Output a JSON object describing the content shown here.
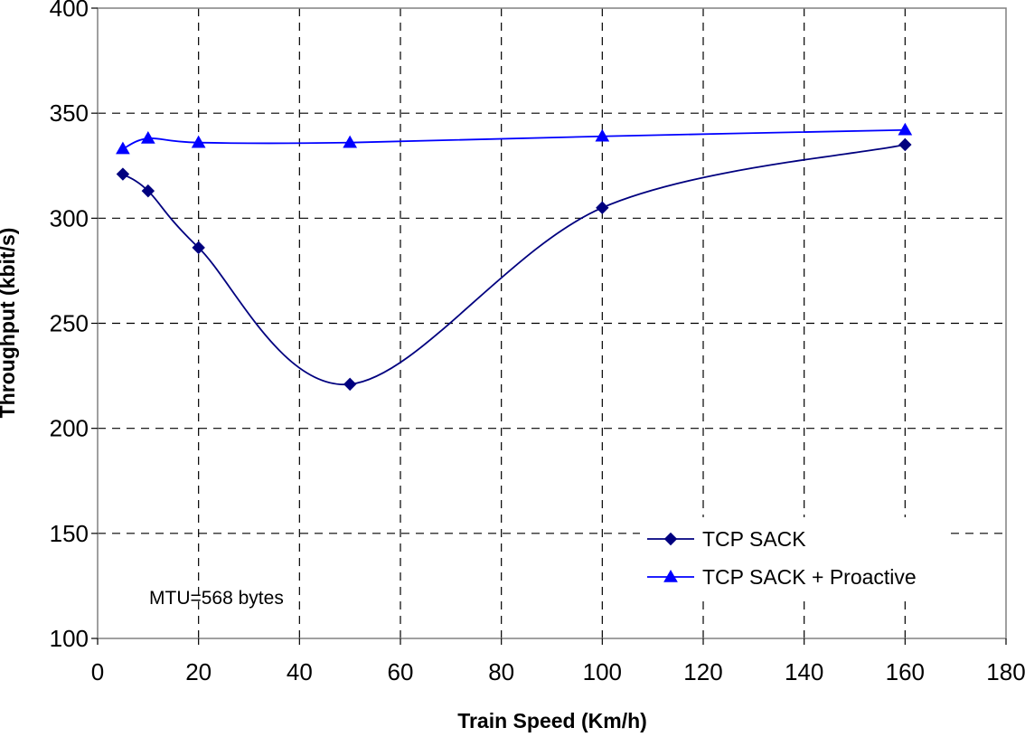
{
  "chart_data": {
    "type": "line",
    "title": "",
    "xlabel": "Train Speed (Km/h)",
    "ylabel": "Throughput (kbit/s)",
    "xlim": [
      0,
      180
    ],
    "ylim": [
      100,
      400
    ],
    "xticks": [
      0,
      20,
      40,
      60,
      80,
      100,
      120,
      140,
      160,
      180
    ],
    "yticks": [
      100,
      150,
      200,
      250,
      300,
      350,
      400
    ],
    "grid": true,
    "legend_position": "lower-right",
    "annotation": "MTU=568 bytes",
    "series": [
      {
        "name": "TCP SACK",
        "marker": "diamond",
        "color": "#00007f",
        "x": [
          5,
          10,
          20,
          50,
          100,
          160
        ],
        "y": [
          321,
          313,
          286,
          221,
          305,
          335
        ]
      },
      {
        "name": "TCP SACK + Proactive",
        "marker": "triangle",
        "color": "#0000ff",
        "x": [
          5,
          10,
          20,
          50,
          100,
          160
        ],
        "y": [
          333,
          338,
          336,
          336,
          339,
          342
        ]
      }
    ]
  }
}
